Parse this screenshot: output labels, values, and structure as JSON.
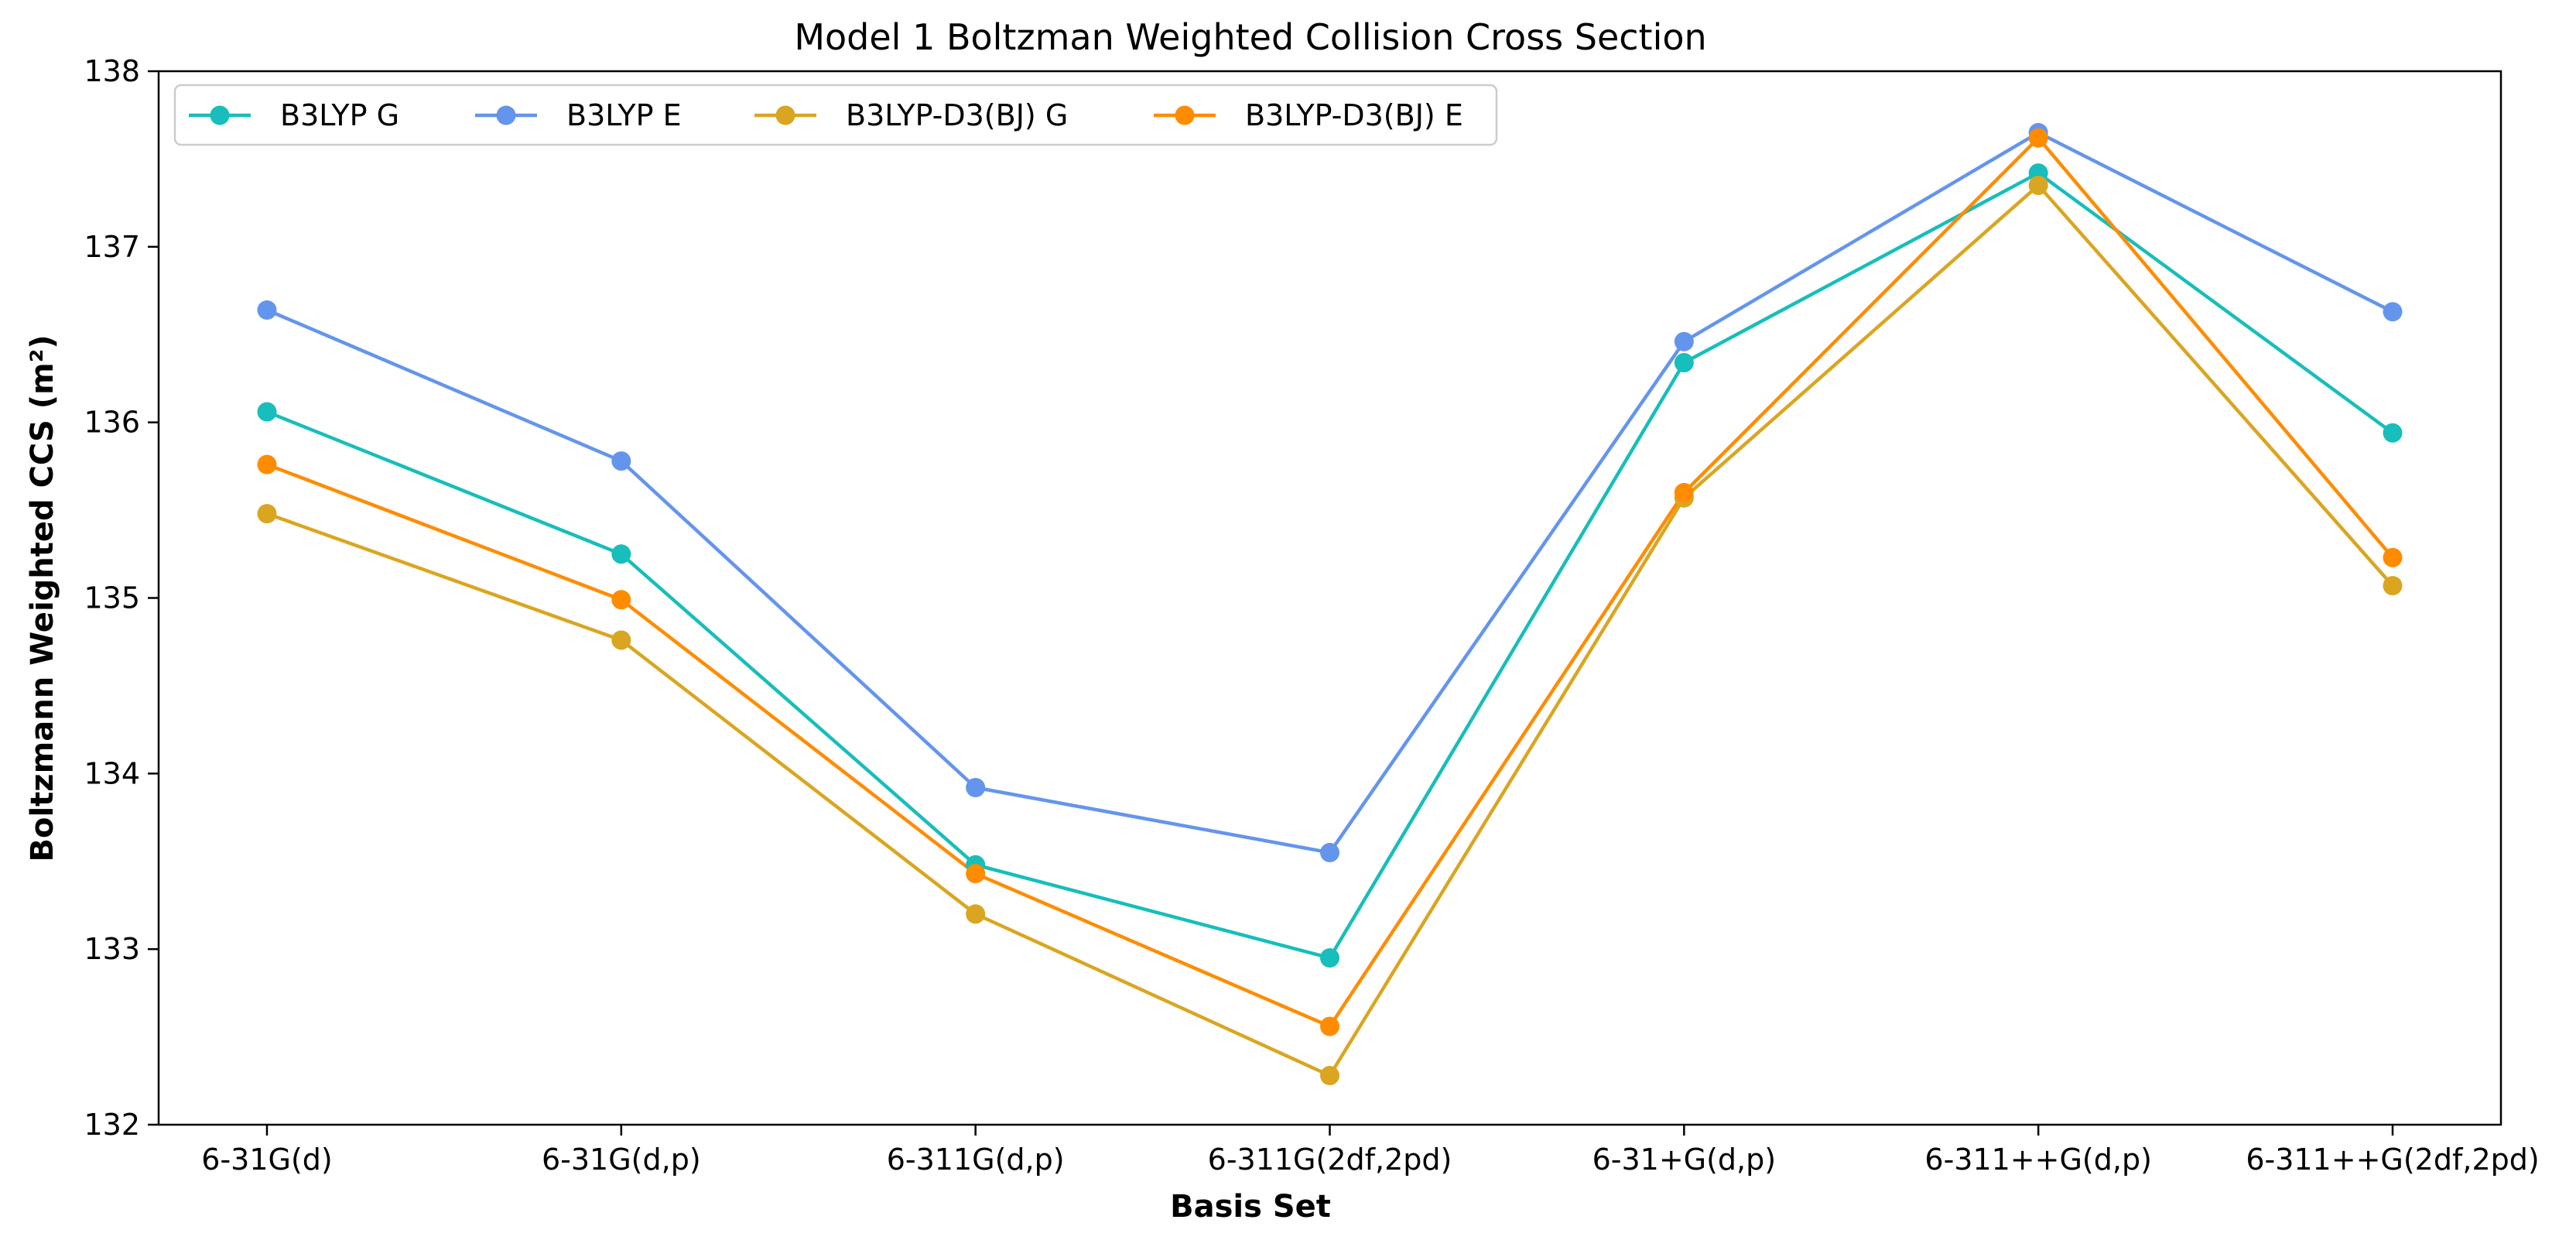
{
  "chart_data": {
    "type": "line",
    "title": "Model 1 Boltzman Weighted Collision Cross Section",
    "xlabel": "Basis Set",
    "ylabel": "Boltzmann Weighted CCS (m²)",
    "ylim": [
      132,
      138
    ],
    "yticks": [
      132,
      133,
      134,
      135,
      136,
      137,
      138
    ],
    "categories": [
      "6-31G(d)",
      "6-31G(d,p)",
      "6-311G(d,p)",
      "6-311G(2df,2pd)",
      "6-31+G(d,p)",
      "6-311++G(d,p)",
      "6-311++G(2df,2pd)"
    ],
    "grid": false,
    "legend_position": "top-left",
    "legend_columns": 4,
    "series": [
      {
        "name": "B3LYP G",
        "color": "#17bebb",
        "values": [
          136.06,
          135.25,
          133.48,
          132.95,
          136.34,
          137.42,
          135.94
        ]
      },
      {
        "name": "B3LYP E",
        "color": "#6495ed",
        "values": [
          136.64,
          135.78,
          133.92,
          133.55,
          136.46,
          137.65,
          136.63
        ]
      },
      {
        "name": "B3LYP-D3(BJ) G",
        "color": "#daa520",
        "values": [
          135.48,
          134.76,
          133.2,
          132.28,
          135.57,
          137.35,
          135.07
        ]
      },
      {
        "name": "B3LYP-D3(BJ) E",
        "color": "#ff8c00",
        "values": [
          135.76,
          134.99,
          133.43,
          132.56,
          135.6,
          137.62,
          135.23
        ]
      }
    ]
  }
}
